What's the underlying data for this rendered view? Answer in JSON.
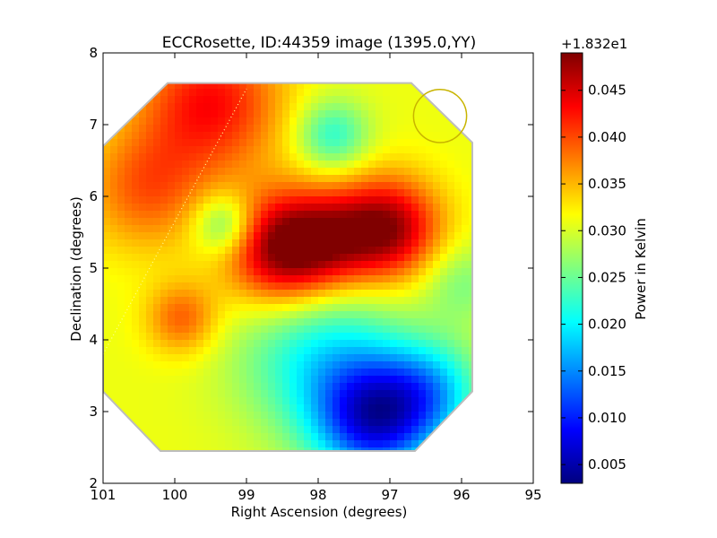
{
  "chart_data": {
    "type": "heatmap",
    "title": "ECCRosette, ID:44359 image (1395.0,YY)",
    "xlabel": "Right Ascension (degrees)",
    "ylabel": "Declination (degrees)",
    "xlim": [
      101,
      95
    ],
    "ylim": [
      2,
      8
    ],
    "x_ticks": [
      "101",
      "100",
      "99",
      "98",
      "97",
      "96",
      "95"
    ],
    "y_ticks": [
      "8",
      "7",
      "6",
      "5",
      "4",
      "3",
      "2"
    ],
    "colorbar": {
      "label": "Power in Kelvin",
      "offset_text": "+1.832e1",
      "range": [
        0.003,
        0.049
      ],
      "ticks": [
        "0.045",
        "0.040",
        "0.035",
        "0.030",
        "0.025",
        "0.020",
        "0.015",
        "0.010",
        "0.005"
      ],
      "colormap": "jet"
    },
    "background_level": 0.031,
    "blobs": [
      {
        "ra": 98.5,
        "dec": 5.25,
        "amp": 0.018,
        "sigma": 0.55
      },
      {
        "ra": 97.0,
        "dec": 5.55,
        "amp": 0.016,
        "sigma": 0.5
      },
      {
        "ra": 97.8,
        "dec": 5.4,
        "amp": 0.01,
        "sigma": 0.5
      },
      {
        "ra": 99.5,
        "dec": 7.3,
        "amp": 0.012,
        "sigma": 0.7
      },
      {
        "ra": 100.4,
        "dec": 6.1,
        "amp": 0.008,
        "sigma": 0.6
      },
      {
        "ra": 99.9,
        "dec": 4.3,
        "amp": 0.008,
        "sigma": 0.35
      },
      {
        "ra": 99.3,
        "dec": 5.6,
        "amp": -0.009,
        "sigma": 0.3
      },
      {
        "ra": 97.8,
        "dec": 6.85,
        "amp": -0.009,
        "sigma": 0.35
      },
      {
        "ra": 98.0,
        "dec": 3.8,
        "amp": -0.01,
        "sigma": 0.8
      },
      {
        "ra": 97.2,
        "dec": 2.9,
        "amp": -0.022,
        "sigma": 0.6
      },
      {
        "ra": 96.4,
        "dec": 3.3,
        "amp": -0.01,
        "sigma": 0.5
      },
      {
        "ra": 96.0,
        "dec": 4.8,
        "amp": -0.005,
        "sigma": 0.4
      }
    ],
    "footprint_ra_dec": [
      [
        100.1,
        7.58
      ],
      [
        96.7,
        7.58
      ],
      [
        95.85,
        6.75
      ],
      [
        95.85,
        3.28
      ],
      [
        96.65,
        2.45
      ],
      [
        100.2,
        2.45
      ],
      [
        101.0,
        3.28
      ],
      [
        101.0,
        6.7
      ]
    ],
    "beam_circle": {
      "ra": 96.3,
      "dec": 7.12,
      "radius_deg": 0.37,
      "color": "#c8b400"
    },
    "dotted_line": {
      "from": [
        101.0,
        3.8
      ],
      "to": [
        99.0,
        7.5
      ]
    }
  }
}
